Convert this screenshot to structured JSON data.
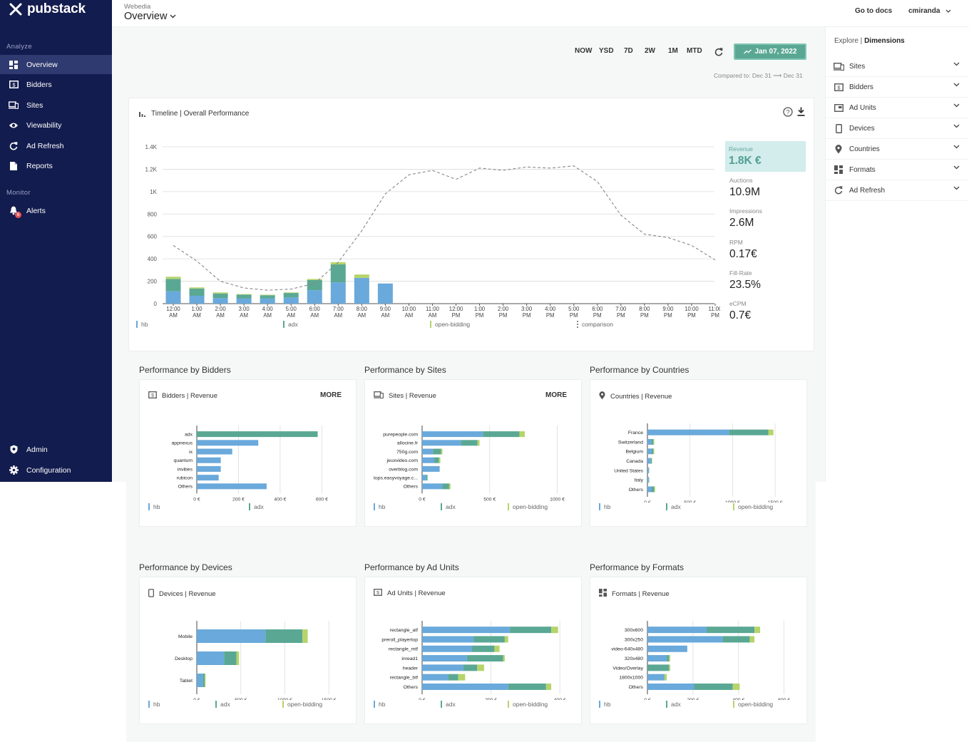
{
  "app": {
    "brand": "pubstack",
    "workspace": "Webedia",
    "page_title": "Overview"
  },
  "topbar": {
    "docs_label": "Go to docs",
    "user_name": "cmiranda"
  },
  "sidebar": {
    "analyze_label": "Analyze",
    "monitor_label": "Monitor",
    "items": [
      {
        "label": "Overview",
        "icon": "dashboard-icon"
      },
      {
        "label": "Bidders",
        "icon": "dollar-icon"
      },
      {
        "label": "Sites",
        "icon": "devices-icon"
      },
      {
        "label": "Viewability",
        "icon": "eye-icon"
      },
      {
        "label": "Ad Refresh",
        "icon": "refresh-icon"
      },
      {
        "label": "Reports",
        "icon": "document-icon"
      }
    ],
    "monitor_items": [
      {
        "label": "Alerts",
        "icon": "bell-icon",
        "badge": "6"
      }
    ],
    "bottom_items": [
      {
        "label": "Admin",
        "icon": "shield-icon"
      },
      {
        "label": "Configuration",
        "icon": "gear-icon"
      }
    ]
  },
  "range": {
    "buttons": [
      "NOW",
      "YSD",
      "7D",
      "2W",
      "1M",
      "MTD"
    ],
    "date_label": "Jan 07, 2022",
    "compared_label": "Compared to: Dec 31",
    "compared_to": "Dec 31"
  },
  "timeline": {
    "title": "Timeline | Overall Performance",
    "kpis": [
      {
        "label": "Revenue",
        "value": "1.8K €"
      },
      {
        "label": "Auctions",
        "value": "10.9M"
      },
      {
        "label": "Impressions",
        "value": "2.6M"
      },
      {
        "label": "RPM",
        "value": "0.17€"
      },
      {
        "label": "Fill-Rate",
        "value": "23.5%"
      },
      {
        "label": "eCPM",
        "value": "0.7€"
      }
    ],
    "legend": [
      "hb",
      "adx",
      "open-bidding",
      "comparison"
    ]
  },
  "colors": {
    "hb": "#6aa9db",
    "adx": "#5aa894",
    "open_bidding": "#b6d46a",
    "comparison": "#888888",
    "sidebar": "#131c4e",
    "accent": "#5aa894"
  },
  "chart_data": [
    {
      "type": "bar",
      "title": "Timeline | Overall Performance",
      "stacked": true,
      "categories": [
        "12:00 AM",
        "1:00 AM",
        "2:00 AM",
        "3:00 AM",
        "4:00 AM",
        "5:00 AM",
        "6:00 AM",
        "7:00 AM",
        "8:00 AM",
        "9:00 AM",
        "10:00 AM",
        "11:00 AM",
        "12:00 PM",
        "1:00 PM",
        "2:00 PM",
        "3:00 PM",
        "4:00 PM",
        "5:00 PM",
        "6:00 PM",
        "7:00 PM",
        "8:00 PM",
        "9:00 PM",
        "10:00 PM",
        "11:00 PM"
      ],
      "yticks": [
        "0",
        "200",
        "400",
        "600",
        "800",
        "1K",
        "1.2K",
        "1.4K"
      ],
      "ylim": [
        0,
        1400
      ],
      "series": [
        {
          "name": "hb",
          "values": [
            110,
            70,
            50,
            45,
            45,
            55,
            120,
            190,
            230,
            180,
            0,
            0,
            0,
            0,
            0,
            0,
            0,
            0,
            0,
            0,
            0,
            0,
            0,
            0
          ]
        },
        {
          "name": "adx",
          "values": [
            110,
            65,
            40,
            35,
            30,
            40,
            90,
            160,
            0,
            0,
            0,
            0,
            0,
            0,
            0,
            0,
            0,
            0,
            0,
            0,
            0,
            0,
            0,
            0
          ]
        },
        {
          "name": "open-bidding",
          "values": [
            20,
            10,
            10,
            5,
            5,
            5,
            10,
            20,
            30,
            0,
            0,
            0,
            0,
            0,
            0,
            0,
            0,
            0,
            0,
            0,
            0,
            0,
            0,
            0
          ]
        },
        {
          "name": "comparison",
          "type": "line",
          "values": [
            520,
            380,
            200,
            140,
            120,
            130,
            180,
            370,
            650,
            980,
            1150,
            1190,
            1110,
            1210,
            1190,
            1220,
            1210,
            1230,
            1090,
            790,
            620,
            590,
            520,
            390
          ]
        }
      ]
    },
    {
      "type": "bar",
      "title": "Performance by Bidders",
      "subtitle": "Bidders | Revenue",
      "orientation": "horizontal",
      "categories": [
        "adx",
        "appnexus",
        "ix",
        "quantum",
        "invibes",
        "rubicon",
        "Others"
      ],
      "xticks": [
        "0 €",
        "200 €",
        "400 €",
        "600 €"
      ],
      "xlim": [
        0,
        650
      ],
      "series": [
        {
          "name": "hb",
          "values": [
            0,
            295,
            170,
            115,
            115,
            105,
            335
          ]
        },
        {
          "name": "adx",
          "values": [
            580,
            0,
            0,
            0,
            0,
            0,
            0
          ]
        }
      ],
      "legend": [
        "hb",
        "adx"
      ],
      "more_label": "MORE"
    },
    {
      "type": "bar",
      "title": "Performance by Sites",
      "subtitle": "Sites | Revenue",
      "orientation": "horizontal",
      "categories": [
        "purepeople.com",
        "allocine.fr",
        "750g.com",
        "jeuxvideo.com",
        "overblog.com",
        "tops.easyvoyage.c...",
        "Others"
      ],
      "xticks": [
        "0 €",
        "500 €",
        "1000 €"
      ],
      "xlim": [
        0,
        1050
      ],
      "series": [
        {
          "name": "hb",
          "values": [
            450,
            290,
            80,
            90,
            130,
            30,
            150
          ]
        },
        {
          "name": "adx",
          "values": [
            270,
            120,
            60,
            35,
            0,
            10,
            50
          ]
        },
        {
          "name": "open-bidding",
          "values": [
            40,
            15,
            10,
            10,
            0,
            0,
            10
          ]
        }
      ],
      "legend": [
        "hb",
        "adx",
        "open-bidding"
      ],
      "more_label": "MORE"
    },
    {
      "type": "bar",
      "title": "Performance by Countries",
      "subtitle": "Countries | Revenue",
      "orientation": "horizontal",
      "categories": [
        "France",
        "Switzerland",
        "Belgium",
        "Canada",
        "United States",
        "Italy",
        "Others"
      ],
      "xticks": [
        "0 €",
        "500 €",
        "1000 €",
        "1500 €"
      ],
      "xlim": [
        0,
        1650
      ],
      "series": [
        {
          "name": "hb",
          "values": [
            960,
            50,
            50,
            40,
            15,
            15,
            50
          ]
        },
        {
          "name": "adx",
          "values": [
            460,
            20,
            20,
            10,
            5,
            5,
            30
          ]
        },
        {
          "name": "open-bidding",
          "values": [
            60,
            10,
            10,
            5,
            0,
            0,
            10
          ]
        }
      ],
      "legend": [
        "hb",
        "adx",
        "open-bidding"
      ]
    },
    {
      "type": "bar",
      "title": "Performance by Devices",
      "subtitle": "Devices | Revenue",
      "orientation": "horizontal",
      "categories": [
        "Mobile",
        "Desktop",
        "Tablet"
      ],
      "xticks": [
        "0 €",
        "500 €",
        "1000 €",
        "1500 €"
      ],
      "xlim": [
        0,
        1620
      ],
      "series": [
        {
          "name": "hb",
          "values": [
            780,
            310,
            70
          ]
        },
        {
          "name": "adx",
          "values": [
            420,
            140,
            20
          ]
        },
        {
          "name": "open-bidding",
          "values": [
            60,
            30,
            10
          ]
        }
      ],
      "legend": [
        "hb",
        "adx",
        "open-bidding"
      ]
    },
    {
      "type": "bar",
      "title": "Performance by Ad Units",
      "subtitle": "Ad Units | Revenue",
      "orientation": "horizontal",
      "categories": [
        "rectangle_atf",
        "preroll_playertop",
        "rectangle_mtf",
        "inread1",
        "header",
        "rectangle_btf",
        "Others"
      ],
      "xticks": [
        "0 €",
        "200 €",
        "400 €"
      ],
      "xlim": [
        0,
        410
      ],
      "series": [
        {
          "name": "hb",
          "values": [
            255,
            150,
            145,
            130,
            120,
            75,
            250
          ]
        },
        {
          "name": "adx",
          "values": [
            120,
            90,
            65,
            105,
            40,
            30,
            110
          ]
        },
        {
          "name": "open-bidding",
          "values": [
            20,
            10,
            15,
            5,
            20,
            20,
            15
          ]
        }
      ],
      "legend": [
        "hb",
        "adx",
        "open-bidding"
      ]
    },
    {
      "type": "bar",
      "title": "Performance by Formats",
      "subtitle": "Formats | Revenue",
      "orientation": "horizontal",
      "categories": [
        "300x600",
        "300x250",
        "video-640x480",
        "320x480",
        "Video/Overlay",
        "1800x1000",
        "Others"
      ],
      "xticks": [
        "0 €",
        "200 €",
        "400 €",
        "600 €"
      ],
      "xlim": [
        0,
        620
      ],
      "series": [
        {
          "name": "hb",
          "values": [
            260,
            330,
            175,
            85,
            0,
            75,
            205
          ]
        },
        {
          "name": "adx",
          "values": [
            210,
            120,
            0,
            10,
            95,
            0,
            170
          ]
        },
        {
          "name": "open-bidding",
          "values": [
            25,
            20,
            0,
            5,
            5,
            10,
            30
          ]
        }
      ],
      "legend": [
        "hb",
        "adx",
        "open-bidding"
      ]
    }
  ],
  "explore": {
    "prefix": "Explore | ",
    "title": "Dimensions",
    "items": [
      {
        "label": "Sites",
        "icon": "devices-icon"
      },
      {
        "label": "Bidders",
        "icon": "dollar-icon"
      },
      {
        "label": "Ad Units",
        "icon": "ad-unit-icon"
      },
      {
        "label": "Devices",
        "icon": "phone-icon"
      },
      {
        "label": "Countries",
        "icon": "pin-icon"
      },
      {
        "label": "Formats",
        "icon": "formats-icon"
      },
      {
        "label": "Ad Refresh",
        "icon": "refresh-icon"
      }
    ]
  }
}
